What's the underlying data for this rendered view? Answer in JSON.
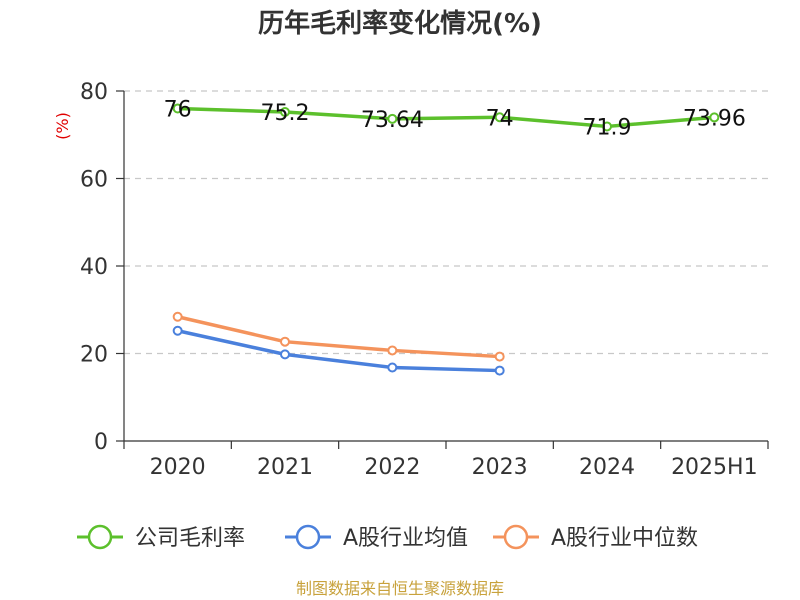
{
  "chart_data": {
    "type": "line",
    "title": "历年毛利率变化情况(%)",
    "ylabel": "(%)",
    "xlabel": "",
    "categories": [
      "2020",
      "2021",
      "2022",
      "2023",
      "2024",
      "2025H1"
    ],
    "ylim": [
      0,
      80
    ],
    "yticks": [
      0,
      20,
      40,
      60,
      80
    ],
    "grid": true,
    "legend_position": "bottom",
    "series": [
      {
        "name": "公司毛利率",
        "color": "#5cc02c",
        "values": [
          76,
          75.2,
          73.64,
          74,
          71.9,
          73.96
        ],
        "labels": [
          "76",
          "75.2",
          "73.64",
          "74",
          "71.9",
          "73.96"
        ]
      },
      {
        "name": "A股行业均值",
        "color": "#4a80dc",
        "values": [
          25.2,
          19.8,
          16.8,
          16.1,
          null,
          null
        ]
      },
      {
        "name": "A股行业中位数",
        "color": "#f4935c",
        "values": [
          28.4,
          22.7,
          20.7,
          19.3,
          null,
          null
        ]
      }
    ]
  },
  "source": "制图数据来自恒生聚源数据库"
}
